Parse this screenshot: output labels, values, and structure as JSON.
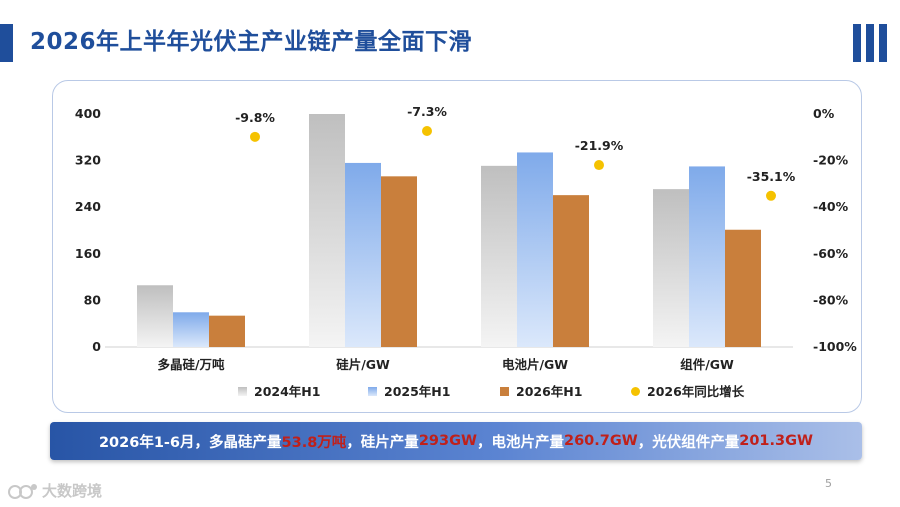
{
  "page": {
    "title": "2026年上半年光伏主产业链产量全面下滑",
    "page_number": "5",
    "watermark": "大数跨境"
  },
  "summary": {
    "segments": [
      {
        "text": "2026年1-6月，多晶硅产量",
        "highlight": false
      },
      {
        "text": "53.8万吨",
        "highlight": true
      },
      {
        "text": "，硅片产量",
        "highlight": false
      },
      {
        "text": "293GW",
        "highlight": true
      },
      {
        "text": "，电池片产量",
        "highlight": false
      },
      {
        "text": "260.7GW",
        "highlight": true
      },
      {
        "text": "，光伏组件产量",
        "highlight": false
      },
      {
        "text": "201.3GW",
        "highlight": true
      }
    ]
  },
  "colors": {
    "title": "#1f4e9b",
    "bar_2024": "#c8c8c8",
    "bar_2025": "#8fb4ec",
    "bar_2026": "#c97f3c",
    "dot": "#f5c200",
    "highlight": "#c0201a"
  },
  "chart_data": {
    "type": "bar",
    "categories": [
      "多晶硅/万吨",
      "硅片/GW",
      "电池片/GW",
      "组件/GW"
    ],
    "series": [
      {
        "name": "2024年H1",
        "kind": "bar",
        "values": [
          106,
          400,
          311,
          271
        ]
      },
      {
        "name": "2025年H1",
        "kind": "bar",
        "values": [
          59.6,
          316,
          334,
          310
        ]
      },
      {
        "name": "2026年H1",
        "kind": "bar",
        "values": [
          53.8,
          293,
          260.7,
          201.3
        ]
      },
      {
        "name": "2026年同比增长",
        "kind": "scatter",
        "axis": "right",
        "values": [
          -9.8,
          -7.3,
          -21.9,
          -35.1
        ]
      }
    ],
    "data_labels": [
      "-9.8%",
      "-7.3%",
      "-21.9%",
      "-35.1%"
    ],
    "y_left": {
      "min": 0,
      "max": 400,
      "ticks": [
        "0",
        "80",
        "160",
        "240",
        "320",
        "400"
      ]
    },
    "y_right": {
      "min": -100,
      "max": 0,
      "ticks": [
        "-100%",
        "-80%",
        "-60%",
        "-40%",
        "-20%",
        "0%"
      ]
    },
    "legend_position": "bottom",
    "grid": false
  }
}
